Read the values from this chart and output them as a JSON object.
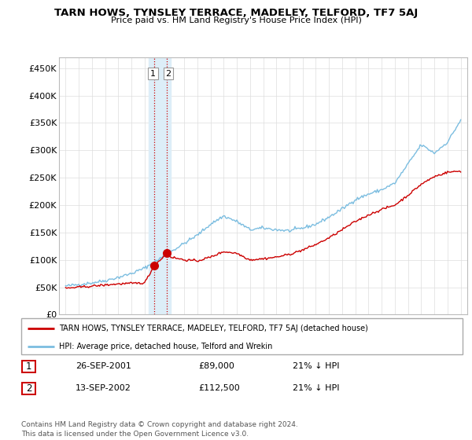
{
  "title": "TARN HOWS, TYNSLEY TERRACE, MADELEY, TELFORD, TF7 5AJ",
  "subtitle": "Price paid vs. HM Land Registry's House Price Index (HPI)",
  "ylabel_ticks": [
    "£0",
    "£50K",
    "£100K",
    "£150K",
    "£200K",
    "£250K",
    "£300K",
    "£350K",
    "£400K",
    "£450K"
  ],
  "ytick_values": [
    0,
    50000,
    100000,
    150000,
    200000,
    250000,
    300000,
    350000,
    400000,
    450000
  ],
  "ylim": [
    0,
    470000
  ],
  "xlim_start": 1994.5,
  "xlim_end": 2025.5,
  "sale1_date": 2001.73,
  "sale1_price": 89000,
  "sale2_date": 2002.71,
  "sale2_price": 112500,
  "shade_x1": 2001.3,
  "shade_x2": 2003.0,
  "legend_line1": "TARN HOWS, TYNSLEY TERRACE, MADELEY, TELFORD, TF7 5AJ (detached house)",
  "legend_line2": "HPI: Average price, detached house, Telford and Wrekin",
  "table_row1": [
    "1",
    "26-SEP-2001",
    "£89,000",
    "21% ↓ HPI"
  ],
  "table_row2": [
    "2",
    "13-SEP-2002",
    "£112,500",
    "21% ↓ HPI"
  ],
  "footnote": "Contains HM Land Registry data © Crown copyright and database right 2024.\nThis data is licensed under the Open Government Licence v3.0.",
  "hpi_color": "#7bbde0",
  "sold_color": "#cc0000",
  "shade_color": "#ddeef8",
  "grid_color": "#dddddd",
  "hpi_kx": [
    1995,
    1996,
    1997,
    1998,
    1999,
    2000,
    2001,
    2002,
    2003,
    2004,
    2005,
    2006,
    2007,
    2008,
    2009,
    2010,
    2011,
    2012,
    2013,
    2014,
    2015,
    2016,
    2017,
    2018,
    2019,
    2020,
    2021,
    2022,
    2023,
    2024,
    2025
  ],
  "hpi_ky": [
    52000,
    55000,
    58000,
    62000,
    68000,
    75000,
    85000,
    100000,
    115000,
    130000,
    145000,
    165000,
    180000,
    170000,
    155000,
    158000,
    155000,
    153000,
    158000,
    165000,
    178000,
    193000,
    210000,
    220000,
    228000,
    240000,
    275000,
    310000,
    295000,
    315000,
    355000
  ],
  "sold_kx": [
    1995,
    1996,
    1997,
    1998,
    1999,
    2000,
    2001,
    2001.73,
    2002.71,
    2003,
    2004,
    2005,
    2006,
    2007,
    2008,
    2009,
    2010,
    2011,
    2012,
    2013,
    2014,
    2015,
    2016,
    2017,
    2018,
    2019,
    2020,
    2021,
    2022,
    2023,
    2024,
    2025
  ],
  "sold_ky": [
    48000,
    50000,
    52000,
    54000,
    56000,
    57000,
    58000,
    89000,
    112500,
    105000,
    100000,
    98000,
    105000,
    115000,
    112000,
    100000,
    102000,
    105000,
    110000,
    118000,
    128000,
    140000,
    155000,
    170000,
    182000,
    192000,
    200000,
    218000,
    238000,
    252000,
    260000,
    262000
  ]
}
